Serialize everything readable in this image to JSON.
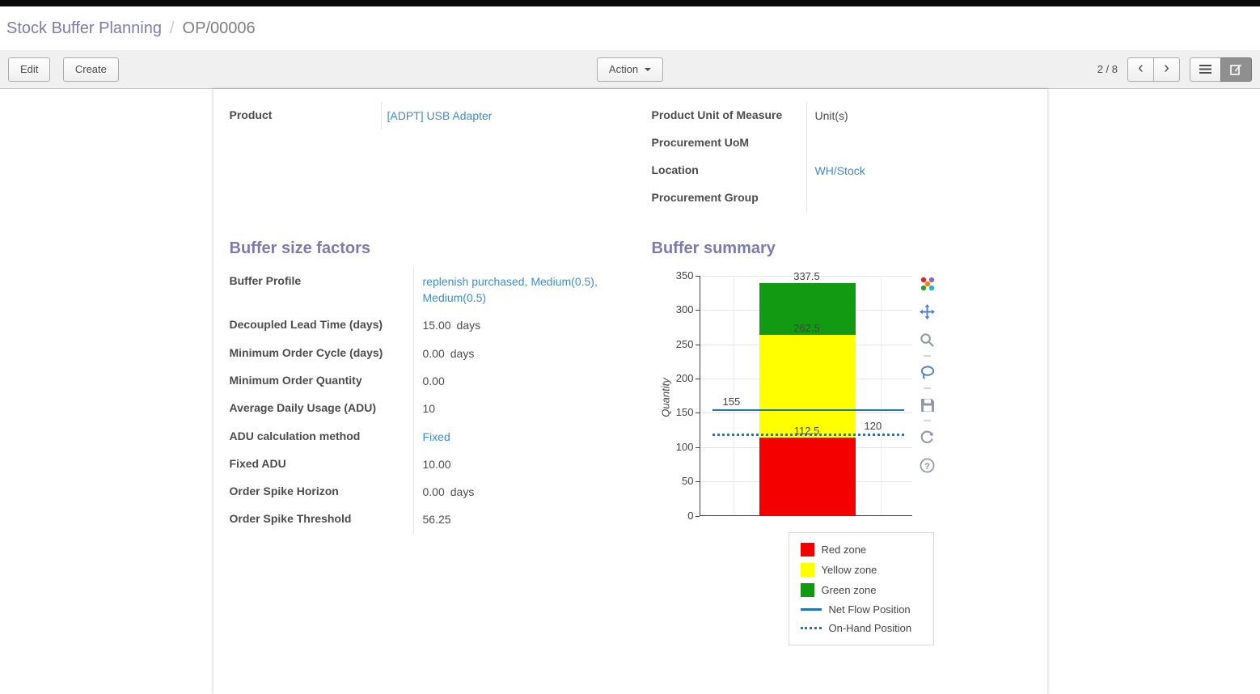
{
  "colors": {
    "accent": "#7c7bad",
    "link": "#428bca",
    "topbar": "#0a0a0a"
  },
  "breadcrumb": {
    "section": "Stock Buffer Planning",
    "separator": "/",
    "record": "OP/00006"
  },
  "toolbar": {
    "edit_label": "Edit",
    "create_label": "Create",
    "action_label": "Action",
    "pager": "2 / 8"
  },
  "sheet": {
    "top_left": {
      "label": "Product",
      "value": "[ADPT] USB Adapter"
    },
    "top_right": [
      {
        "label": "Product Unit of Measure",
        "value": "Unit(s)"
      },
      {
        "label": "Procurement UoM",
        "value": ""
      },
      {
        "label": "Location",
        "value": "WH/Stock"
      },
      {
        "label": "Procurement Group",
        "value": ""
      }
    ],
    "factors": {
      "title": "Buffer size factors",
      "fields": [
        {
          "label": "Buffer Profile",
          "value": "replenish purchased, Medium(0.5), Medium(0.5)"
        },
        {
          "label": "Decoupled Lead Time (days)",
          "value": "15.00",
          "suffix": "days"
        },
        {
          "label": "Minimum Order Cycle (days)",
          "value": "0.00",
          "suffix": "days"
        },
        {
          "label": "Minimum Order Quantity",
          "value": "0.00"
        },
        {
          "label": "Average Daily Usage (ADU)",
          "value": "10"
        },
        {
          "label": "ADU calculation method",
          "value": "Fixed"
        },
        {
          "label": "Fixed ADU",
          "value": "10.00"
        },
        {
          "label": "Order Spike Horizon",
          "value": "0.00",
          "suffix": "days"
        },
        {
          "label": "Order Spike Threshold",
          "value": "56.25"
        }
      ]
    },
    "summary": {
      "title": "Buffer summary"
    }
  },
  "chart_data": {
    "type": "bar",
    "title": "Buffer summary",
    "xlabel": "",
    "ylabel": "Quantity",
    "ylim": [
      0,
      350
    ],
    "yticks": [
      0,
      50,
      100,
      150,
      200,
      250,
      300,
      350
    ],
    "grid": true,
    "legend_position": "below-right",
    "zones": [
      {
        "name": "Red zone",
        "from": 0,
        "to": 112.5,
        "color": "#f40000"
      },
      {
        "name": "Yellow zone",
        "from": 112.5,
        "to": 262.5,
        "color": "#ffff00"
      },
      {
        "name": "Green zone",
        "from": 262.5,
        "to": 337.5,
        "color": "#129a12"
      }
    ],
    "lines": [
      {
        "name": "Net Flow Position",
        "value": 155,
        "style": "solid",
        "color": "#1f77b4"
      },
      {
        "name": "On-Hand Position",
        "value": 120,
        "style": "dotted",
        "color": "#1f77b4"
      }
    ],
    "annotations": [
      {
        "text": "337.5",
        "value": 337.5,
        "pos": "above-bar"
      },
      {
        "text": "262.5",
        "value": 262.5,
        "pos": "above-bar"
      },
      {
        "text": "112.5",
        "value": 112.5,
        "pos": "above-bar"
      },
      {
        "text": "155",
        "value": 155,
        "pos": "left"
      },
      {
        "text": "120",
        "value": 120,
        "pos": "right"
      }
    ],
    "legend": [
      "Red zone",
      "Yellow zone",
      "Green zone",
      "Net Flow Position",
      "On-Hand Position"
    ]
  },
  "modebar_icons": [
    "plotly-logo",
    "pan",
    "zoom",
    "lasso-select",
    "download",
    "reset-axes",
    "help"
  ]
}
